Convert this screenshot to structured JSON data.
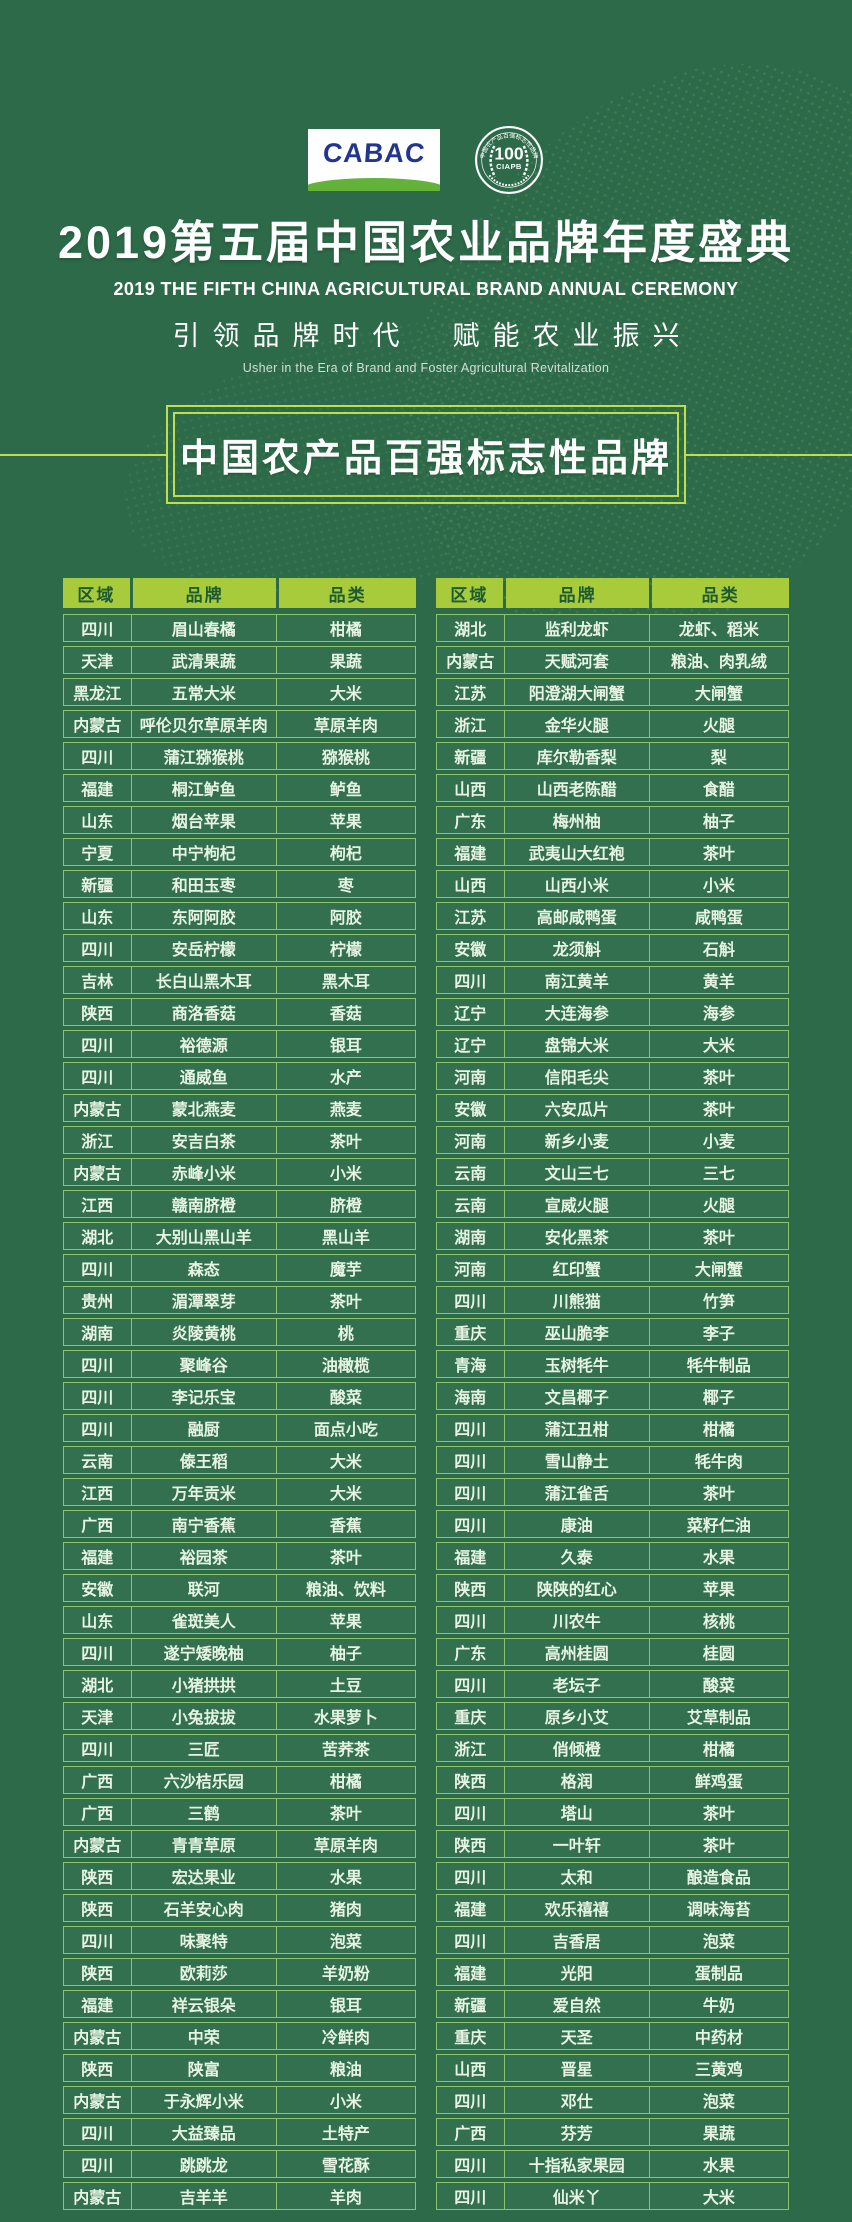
{
  "page": {
    "colors": {
      "bg": "#2d6a49",
      "accent": "#a7cb3b",
      "yline": "#bede4b",
      "rowline": "#8cc468",
      "rowbg": "#32704f",
      "headtxt": "#1d5a31",
      "bodytxt": "#e7f3e3",
      "cabac_blue": "#21368f",
      "cabac_green": "#63b23a"
    }
  },
  "header": {
    "cabac_logo_text": "CABAC",
    "seal": {
      "ring_text": "中国农产品百强标志性品牌",
      "number": "100",
      "org": "CIAPB"
    },
    "title": "2019第五届中国农业品牌年度盛典",
    "subtitle_en": "2019 THE FIFTH CHINA AGRICULTURAL BRAND ANNUAL CEREMONY",
    "tagline": "引领品牌时代　赋能农业振兴",
    "tagline_en": "Usher in the Era of Brand and Foster Agricultural Revitalization"
  },
  "banner": {
    "title": "中国农产品百强标志性品牌"
  },
  "table": {
    "columns": [
      "区域",
      "品牌",
      "品类"
    ],
    "left_rows": [
      [
        "四川",
        "眉山春橘",
        "柑橘"
      ],
      [
        "天津",
        "武清果蔬",
        "果蔬"
      ],
      [
        "黑龙江",
        "五常大米",
        "大米"
      ],
      [
        "内蒙古",
        "呼伦贝尔草原羊肉",
        "草原羊肉"
      ],
      [
        "四川",
        "蒲江猕猴桃",
        "猕猴桃"
      ],
      [
        "福建",
        "桐江鲈鱼",
        "鲈鱼"
      ],
      [
        "山东",
        "烟台苹果",
        "苹果"
      ],
      [
        "宁夏",
        "中宁枸杞",
        "枸杞"
      ],
      [
        "新疆",
        "和田玉枣",
        "枣"
      ],
      [
        "山东",
        "东阿阿胶",
        "阿胶"
      ],
      [
        "四川",
        "安岳柠檬",
        "柠檬"
      ],
      [
        "吉林",
        "长白山黑木耳",
        "黑木耳"
      ],
      [
        "陕西",
        "商洛香菇",
        "香菇"
      ],
      [
        "四川",
        "裕德源",
        "银耳"
      ],
      [
        "四川",
        "通威鱼",
        "水产"
      ],
      [
        "内蒙古",
        "蒙北燕麦",
        "燕麦"
      ],
      [
        "浙江",
        "安吉白茶",
        "茶叶"
      ],
      [
        "内蒙古",
        "赤峰小米",
        "小米"
      ],
      [
        "江西",
        "赣南脐橙",
        "脐橙"
      ],
      [
        "湖北",
        "大别山黑山羊",
        "黑山羊"
      ],
      [
        "四川",
        "森态",
        "魔芋"
      ],
      [
        "贵州",
        "湄潭翠芽",
        "茶叶"
      ],
      [
        "湖南",
        "炎陵黄桃",
        "桃"
      ],
      [
        "四川",
        "聚峰谷",
        "油橄榄"
      ],
      [
        "四川",
        "李记乐宝",
        "酸菜"
      ],
      [
        "四川",
        "融厨",
        "面点小吃"
      ],
      [
        "云南",
        "傣王稻",
        "大米"
      ],
      [
        "江西",
        "万年贡米",
        "大米"
      ],
      [
        "广西",
        "南宁香蕉",
        "香蕉"
      ],
      [
        "福建",
        "裕园茶",
        "茶叶"
      ],
      [
        "安徽",
        "联河",
        "粮油、饮料"
      ],
      [
        "山东",
        "雀斑美人",
        "苹果"
      ],
      [
        "四川",
        "遂宁矮晚柚",
        "柚子"
      ],
      [
        "湖北",
        "小猪拱拱",
        "土豆"
      ],
      [
        "天津",
        "小兔拔拔",
        "水果萝卜"
      ],
      [
        "四川",
        "三匠",
        "苦荞茶"
      ],
      [
        "广西",
        "六沙桔乐园",
        "柑橘"
      ],
      [
        "广西",
        "三鹤",
        "茶叶"
      ],
      [
        "内蒙古",
        "青青草原",
        "草原羊肉"
      ],
      [
        "陕西",
        "宏达果业",
        "水果"
      ],
      [
        "陕西",
        "石羊安心肉",
        "猪肉"
      ],
      [
        "四川",
        "味聚特",
        "泡菜"
      ],
      [
        "陕西",
        "欧莉莎",
        "羊奶粉"
      ],
      [
        "福建",
        "祥云银朵",
        "银耳"
      ],
      [
        "内蒙古",
        "中荣",
        "冷鲜肉"
      ],
      [
        "陕西",
        "陕富",
        "粮油"
      ],
      [
        "内蒙古",
        "于永辉小米",
        "小米"
      ],
      [
        "四川",
        "大益臻品",
        "土特产"
      ],
      [
        "四川",
        "跳跳龙",
        "雪花酥"
      ],
      [
        "内蒙古",
        "吉羊羊",
        "羊肉"
      ]
    ],
    "right_rows": [
      [
        "湖北",
        "监利龙虾",
        "龙虾、稻米"
      ],
      [
        "内蒙古",
        "天赋河套",
        "粮油、肉乳绒"
      ],
      [
        "江苏",
        "阳澄湖大闸蟹",
        "大闸蟹"
      ],
      [
        "浙江",
        "金华火腿",
        "火腿"
      ],
      [
        "新疆",
        "库尔勒香梨",
        "梨"
      ],
      [
        "山西",
        "山西老陈醋",
        "食醋"
      ],
      [
        "广东",
        "梅州柚",
        "柚子"
      ],
      [
        "福建",
        "武夷山大红袍",
        "茶叶"
      ],
      [
        "山西",
        "山西小米",
        "小米"
      ],
      [
        "江苏",
        "高邮咸鸭蛋",
        "咸鸭蛋"
      ],
      [
        "安徽",
        "龙须斛",
        "石斛"
      ],
      [
        "四川",
        "南江黄羊",
        "黄羊"
      ],
      [
        "辽宁",
        "大连海参",
        "海参"
      ],
      [
        "辽宁",
        "盘锦大米",
        "大米"
      ],
      [
        "河南",
        "信阳毛尖",
        "茶叶"
      ],
      [
        "安徽",
        "六安瓜片",
        "茶叶"
      ],
      [
        "河南",
        "新乡小麦",
        "小麦"
      ],
      [
        "云南",
        "文山三七",
        "三七"
      ],
      [
        "云南",
        "宣威火腿",
        "火腿"
      ],
      [
        "湖南",
        "安化黑茶",
        "茶叶"
      ],
      [
        "河南",
        "红印蟹",
        "大闸蟹"
      ],
      [
        "四川",
        "川熊猫",
        "竹笋"
      ],
      [
        "重庆",
        "巫山脆李",
        "李子"
      ],
      [
        "青海",
        "玉树牦牛",
        "牦牛制品"
      ],
      [
        "海南",
        "文昌椰子",
        "椰子"
      ],
      [
        "四川",
        "蒲江丑柑",
        "柑橘"
      ],
      [
        "四川",
        "雪山静土",
        "牦牛肉"
      ],
      [
        "四川",
        "蒲江雀舌",
        "茶叶"
      ],
      [
        "四川",
        "康油",
        "菜籽仁油"
      ],
      [
        "福建",
        "久泰",
        "水果"
      ],
      [
        "陕西",
        "陕陕的红心",
        "苹果"
      ],
      [
        "四川",
        "川农牛",
        "核桃"
      ],
      [
        "广东",
        "高州桂圆",
        "桂圆"
      ],
      [
        "四川",
        "老坛子",
        "酸菜"
      ],
      [
        "重庆",
        "原乡小艾",
        "艾草制品"
      ],
      [
        "浙江",
        "俏倾橙",
        "柑橘"
      ],
      [
        "陕西",
        "格润",
        "鲜鸡蛋"
      ],
      [
        "四川",
        "塔山",
        "茶叶"
      ],
      [
        "陕西",
        "一叶轩",
        "茶叶"
      ],
      [
        "四川",
        "太和",
        "酿造食品"
      ],
      [
        "福建",
        "欢乐禧禧",
        "调味海苔"
      ],
      [
        "四川",
        "吉香居",
        "泡菜"
      ],
      [
        "福建",
        "光阳",
        "蛋制品"
      ],
      [
        "新疆",
        "爱自然",
        "牛奶"
      ],
      [
        "重庆",
        "天圣",
        "中药材"
      ],
      [
        "山西",
        "晋星",
        "三黄鸡"
      ],
      [
        "四川",
        "邓仕",
        "泡菜"
      ],
      [
        "广西",
        "芬芳",
        "果蔬"
      ],
      [
        "四川",
        "十指私家果园",
        "水果"
      ],
      [
        "四川",
        "仙米丫",
        "大米"
      ]
    ]
  }
}
